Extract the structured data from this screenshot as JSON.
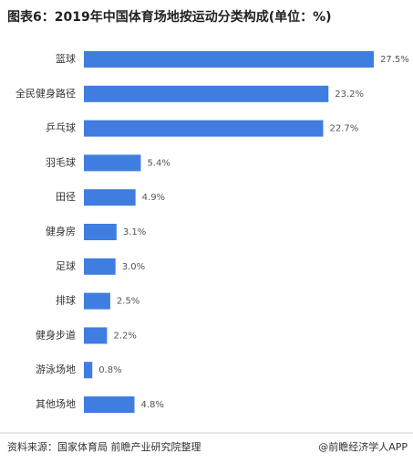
{
  "chart_data": {
    "type": "bar",
    "orientation": "horizontal",
    "title": "图表6：2019年中国体育场地按运动分类构成(单位：%)",
    "categories": [
      "篮球",
      "全民健身路径",
      "乒乓球",
      "羽毛球",
      "田径",
      "健身房",
      "足球",
      "排球",
      "健身步道",
      "游泳场地",
      "其他场地"
    ],
    "values": [
      27.5,
      23.2,
      22.7,
      5.4,
      4.9,
      3.1,
      3.0,
      2.5,
      2.2,
      0.8,
      4.8
    ],
    "value_labels": [
      "27.5%",
      "23.2%",
      "22.7%",
      "5.4%",
      "4.9%",
      "3.1%",
      "3.0%",
      "2.5%",
      "2.2%",
      "0.8%",
      "4.8%"
    ],
    "color": "#3f7ee0",
    "source": "资料来源：国家体育局 前瞻产业研究院整理",
    "credit": "@前瞻经济学人APP"
  }
}
